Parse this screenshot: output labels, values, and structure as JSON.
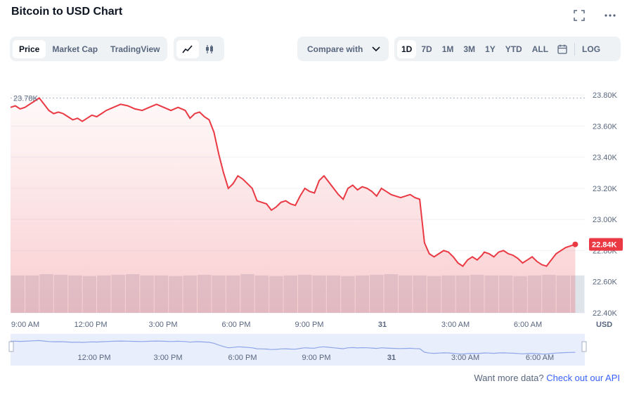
{
  "header": {
    "title": "Bitcoin to USD Chart"
  },
  "tabs": [
    "Price",
    "Market Cap",
    "TradingView"
  ],
  "compare": {
    "label": "Compare with"
  },
  "ranges": [
    "1D",
    "7D",
    "1M",
    "3M",
    "1Y",
    "YTD",
    "ALL"
  ],
  "log_label": "LOG",
  "icons": {
    "fullscreen": "fullscreen-icon",
    "more": "more-icon",
    "line": "line-chart-icon",
    "candle": "candlestick-icon",
    "calendar": "calendar-icon",
    "chevron": "chevron-down-icon"
  },
  "colors": {
    "line": "#ea3943",
    "fill": "#ea3943",
    "volume": "#cfd6e4",
    "navigator_line": "#8fa6e8",
    "navigator_fill": "#e8eefc"
  },
  "footer": {
    "text": "Want more data?",
    "link": "Check out our API"
  },
  "chart_data": {
    "type": "area",
    "x_labels": [
      "9:00 AM",
      "12:00 PM",
      "3:00 PM",
      "6:00 PM",
      "9:00 PM",
      "31",
      "3:00 AM",
      "6:00 AM"
    ],
    "navigator_labels": [
      "12:00 PM",
      "3:00 PM",
      "6:00 PM",
      "9:00 PM",
      "31",
      "3:00 AM",
      "6:00 AM"
    ],
    "y_ticks": [
      "23.80K",
      "23.60K",
      "23.40K",
      "23.20K",
      "23.00K",
      "22.80K",
      "22.60K",
      "22.40K"
    ],
    "y_tick_values": [
      23800,
      23600,
      23400,
      23200,
      23000,
      22800,
      22600,
      22400
    ],
    "ylim": [
      22400,
      23800
    ],
    "xlim": [
      0,
      24
    ],
    "y_unit": "USD",
    "max_label": "23.78K",
    "max_value": 23780,
    "current_label": "22.84K",
    "current_value": 22840,
    "series": [
      {
        "x": [
          0,
          0.2,
          0.4,
          0.6,
          1.0,
          1.2,
          1.4,
          1.6,
          1.8,
          2.0,
          2.2,
          2.4,
          2.6,
          2.8,
          3.0,
          3.2,
          3.4,
          3.6,
          3.8,
          4.0,
          4.3,
          4.6,
          4.9,
          5.2,
          5.5,
          5.8,
          6.1,
          6.4,
          6.7,
          7.0,
          7.3,
          7.5,
          7.7,
          7.9,
          8.1,
          8.3,
          8.5,
          8.7,
          8.9,
          9.1,
          9.3,
          9.5,
          9.7,
          9.9,
          10.1,
          10.3,
          10.5,
          10.7,
          10.9,
          11.1,
          11.3,
          11.5,
          11.7,
          11.9,
          12.1,
          12.3,
          12.5,
          12.7,
          12.9,
          13.1,
          13.3,
          13.5,
          13.7,
          13.9,
          14.1,
          14.3,
          14.5,
          14.7,
          14.9,
          15.1,
          15.3,
          15.5,
          15.7,
          15.9,
          16.1,
          16.3,
          16.5,
          16.7,
          16.9,
          17.1,
          17.3,
          17.5,
          17.7,
          17.9,
          18.1,
          18.3,
          18.5,
          18.7,
          18.9,
          19.1,
          19.3,
          19.5,
          19.7,
          19.8,
          20.0,
          20.2,
          20.4,
          20.6,
          20.8,
          21.0,
          21.2,
          21.4,
          21.6,
          21.8,
          22.0,
          22.2,
          22.4,
          22.6,
          22.8,
          23.0,
          23.2,
          23.4,
          23.6
        ],
        "values": [
          23720,
          23730,
          23710,
          23720,
          23760,
          23780,
          23740,
          23700,
          23680,
          23690,
          23680,
          23660,
          23640,
          23650,
          23630,
          23650,
          23670,
          23660,
          23680,
          23700,
          23720,
          23740,
          23730,
          23710,
          23700,
          23720,
          23740,
          23720,
          23700,
          23720,
          23700,
          23650,
          23680,
          23690,
          23660,
          23640,
          23560,
          23420,
          23300,
          23200,
          23230,
          23280,
          23260,
          23230,
          23200,
          23120,
          23110,
          23100,
          23060,
          23080,
          23110,
          23120,
          23100,
          23090,
          23150,
          23200,
          23180,
          23170,
          23250,
          23280,
          23240,
          23200,
          23160,
          23130,
          23200,
          23220,
          23190,
          23210,
          23200,
          23180,
          23150,
          23200,
          23180,
          23160,
          23150,
          23140,
          23150,
          23160,
          23140,
          23130,
          22850,
          22780,
          22760,
          22780,
          22800,
          22790,
          22760,
          22720,
          22700,
          22740,
          22760,
          22740,
          22770,
          22790,
          22780,
          22760,
          22790,
          22800,
          22780,
          22770,
          22750,
          22720,
          22740,
          22760,
          22730,
          22710,
          22700,
          22740,
          22780,
          22800,
          22820,
          22830,
          22840
        ]
      }
    ],
    "volume": {
      "values": [
        0.6,
        0.6,
        0.62,
        0.61,
        0.6,
        0.59,
        0.6,
        0.61,
        0.62,
        0.6,
        0.6,
        0.59,
        0.6,
        0.61,
        0.6,
        0.6,
        0.62,
        0.6,
        0.59,
        0.6,
        0.61,
        0.6,
        0.6,
        0.59,
        0.6,
        0.61,
        0.62,
        0.6,
        0.6,
        0.59,
        0.6,
        0.6,
        0.61,
        0.6,
        0.6,
        0.59,
        0.6,
        0.61,
        0.6,
        0.6
      ]
    }
  }
}
